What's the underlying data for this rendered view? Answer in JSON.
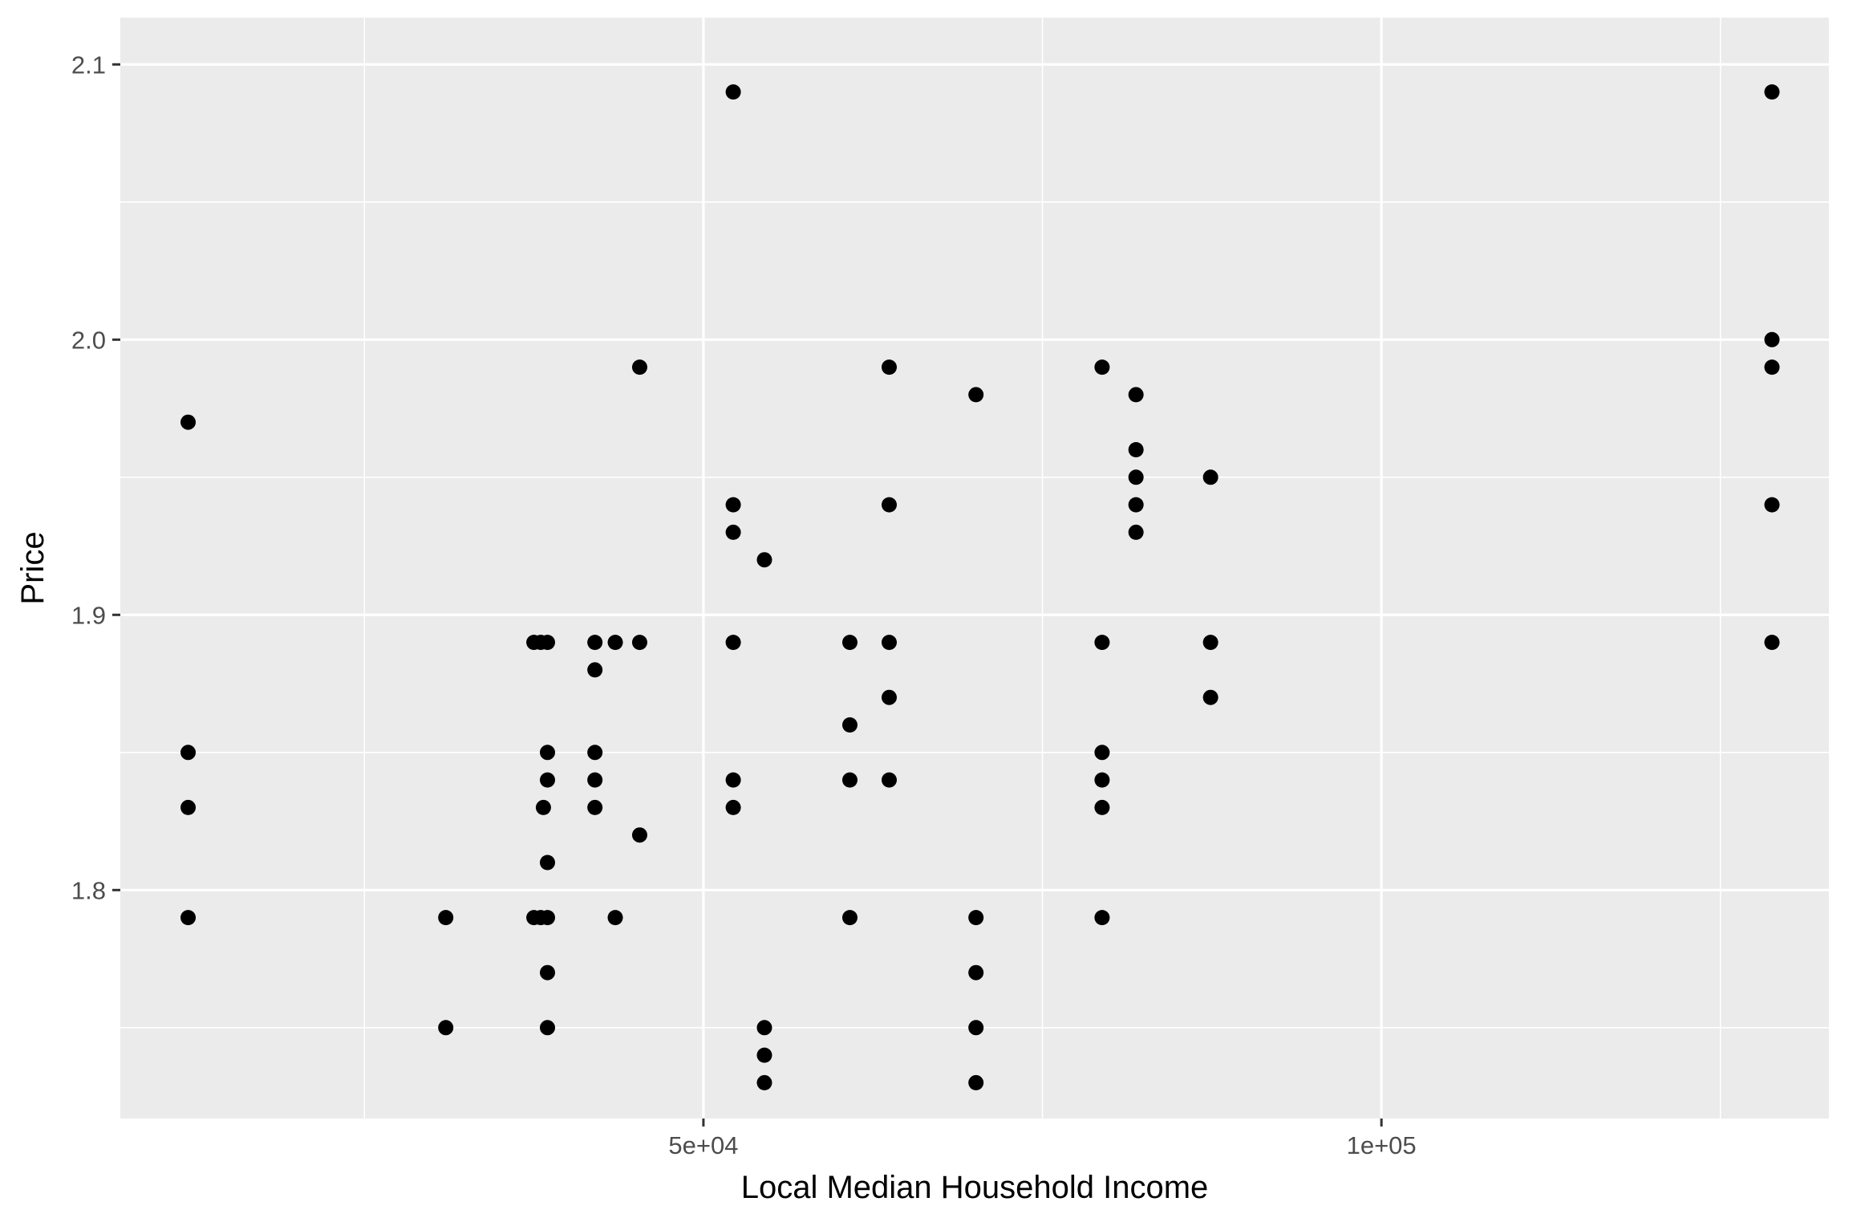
{
  "chart_data": {
    "type": "scatter",
    "title": "",
    "xlabel": "Local Median Household Income",
    "ylabel": "Price",
    "xlim": [
      7000,
      133000
    ],
    "ylim": [
      1.717,
      2.117
    ],
    "x_major_ticks": [
      50000,
      100000
    ],
    "x_minor_ticks": [
      25000,
      75000,
      125000
    ],
    "y_major_ticks": [
      1.8,
      1.9,
      2.0,
      2.1
    ],
    "y_minor_ticks": [
      1.75,
      1.85,
      1.95,
      2.05
    ],
    "x_tick_labels": [
      "5e+04",
      "1e+05"
    ],
    "y_tick_labels": [
      "1.8",
      "1.9",
      "2.0",
      "2.1"
    ],
    "grid": true,
    "legend": "none",
    "colors": {
      "panel": "#ebebeb",
      "grid": "#ffffff",
      "point": "#000000"
    },
    "points": [
      {
        "x": 12000,
        "y": 1.97
      },
      {
        "x": 12000,
        "y": 1.85
      },
      {
        "x": 12000,
        "y": 1.83
      },
      {
        "x": 12000,
        "y": 1.79
      },
      {
        "x": 31000,
        "y": 1.79
      },
      {
        "x": 31000,
        "y": 1.75
      },
      {
        "x": 37500,
        "y": 1.89
      },
      {
        "x": 38000,
        "y": 1.89
      },
      {
        "x": 38500,
        "y": 1.89
      },
      {
        "x": 37500,
        "y": 1.79
      },
      {
        "x": 38000,
        "y": 1.79
      },
      {
        "x": 38500,
        "y": 1.79
      },
      {
        "x": 38500,
        "y": 1.85
      },
      {
        "x": 38500,
        "y": 1.84
      },
      {
        "x": 38200,
        "y": 1.83
      },
      {
        "x": 38500,
        "y": 1.81
      },
      {
        "x": 38500,
        "y": 1.77
      },
      {
        "x": 38500,
        "y": 1.75
      },
      {
        "x": 42000,
        "y": 1.89
      },
      {
        "x": 42000,
        "y": 1.88
      },
      {
        "x": 42000,
        "y": 1.85
      },
      {
        "x": 42000,
        "y": 1.84
      },
      {
        "x": 42000,
        "y": 1.83
      },
      {
        "x": 43500,
        "y": 1.89
      },
      {
        "x": 43500,
        "y": 1.79
      },
      {
        "x": 45300,
        "y": 1.99
      },
      {
        "x": 45300,
        "y": 1.89
      },
      {
        "x": 45300,
        "y": 1.82
      },
      {
        "x": 52200,
        "y": 2.09
      },
      {
        "x": 52200,
        "y": 1.94
      },
      {
        "x": 52200,
        "y": 1.93
      },
      {
        "x": 52200,
        "y": 1.89
      },
      {
        "x": 52200,
        "y": 1.84
      },
      {
        "x": 52200,
        "y": 1.83
      },
      {
        "x": 54500,
        "y": 1.92
      },
      {
        "x": 54500,
        "y": 1.75
      },
      {
        "x": 54500,
        "y": 1.74
      },
      {
        "x": 54500,
        "y": 1.73
      },
      {
        "x": 60800,
        "y": 1.89
      },
      {
        "x": 60800,
        "y": 1.86
      },
      {
        "x": 60800,
        "y": 1.84
      },
      {
        "x": 60800,
        "y": 1.79
      },
      {
        "x": 63700,
        "y": 1.99
      },
      {
        "x": 63700,
        "y": 1.94
      },
      {
        "x": 63700,
        "y": 1.89
      },
      {
        "x": 63700,
        "y": 1.87
      },
      {
        "x": 63700,
        "y": 1.84
      },
      {
        "x": 70100,
        "y": 1.98
      },
      {
        "x": 70100,
        "y": 1.79
      },
      {
        "x": 70100,
        "y": 1.77
      },
      {
        "x": 70100,
        "y": 1.75
      },
      {
        "x": 70100,
        "y": 1.73
      },
      {
        "x": 79400,
        "y": 1.99
      },
      {
        "x": 79400,
        "y": 1.89
      },
      {
        "x": 79400,
        "y": 1.85
      },
      {
        "x": 79400,
        "y": 1.84
      },
      {
        "x": 79400,
        "y": 1.83
      },
      {
        "x": 79400,
        "y": 1.79
      },
      {
        "x": 81900,
        "y": 1.98
      },
      {
        "x": 81900,
        "y": 1.96
      },
      {
        "x": 81900,
        "y": 1.95
      },
      {
        "x": 81900,
        "y": 1.94
      },
      {
        "x": 81900,
        "y": 1.93
      },
      {
        "x": 87400,
        "y": 1.95
      },
      {
        "x": 87400,
        "y": 1.89
      },
      {
        "x": 87400,
        "y": 1.87
      },
      {
        "x": 128800,
        "y": 2.09
      },
      {
        "x": 128800,
        "y": 2.0
      },
      {
        "x": 128800,
        "y": 1.99
      },
      {
        "x": 128800,
        "y": 1.94
      },
      {
        "x": 128800,
        "y": 1.89
      }
    ]
  }
}
